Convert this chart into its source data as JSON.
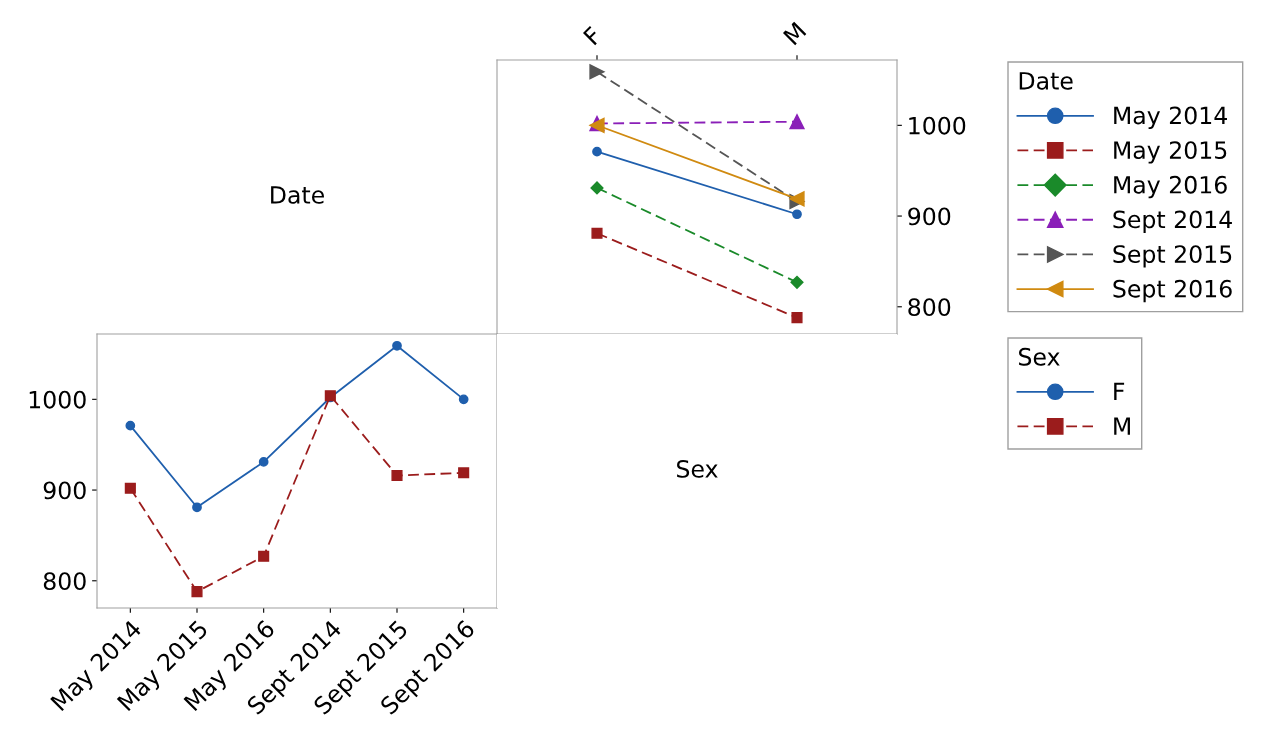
{
  "chart_data": [
    {
      "type": "other",
      "title": "Date"
    },
    {
      "type": "line",
      "categories": [
        "F",
        "M"
      ],
      "ylim": [
        770,
        1072
      ],
      "yticks": [
        800,
        900,
        1000
      ],
      "legend_title": "Date",
      "legend": "right",
      "grid": false,
      "series": [
        {
          "name": "May 2014",
          "color": "#1f5fad",
          "marker": "circle",
          "line_style": "solid",
          "values": [
            971,
            902
          ]
        },
        {
          "name": "May 2015",
          "color": "#9b1c1c",
          "marker": "square",
          "line_style": "dashed",
          "values": [
            881,
            788
          ]
        },
        {
          "name": "May 2016",
          "color": "#1a8a2a",
          "marker": "diamond",
          "line_style": "dashed",
          "values": [
            931,
            827
          ]
        },
        {
          "name": "Sept 2014",
          "color": "#8a1fb8",
          "marker": "triangle",
          "line_style": "dashed",
          "values": [
            1002,
            1004
          ]
        },
        {
          "name": "Sept 2015",
          "color": "#555555",
          "marker": "triangle-right",
          "line_style": "dashed",
          "values": [
            1059,
            916
          ]
        },
        {
          "name": "Sept 2016",
          "color": "#d08a10",
          "marker": "triangle-left",
          "line_style": "solid",
          "values": [
            1000,
            919
          ]
        }
      ]
    },
    {
      "type": "line",
      "categories": [
        "May 2014",
        "May 2015",
        "May 2016",
        "Sept 2014",
        "Sept 2015",
        "Sept 2016"
      ],
      "ylim": [
        770,
        1072
      ],
      "yticks": [
        800,
        900,
        1000
      ],
      "legend_title": "Sex",
      "legend": "right",
      "grid": false,
      "series": [
        {
          "name": "F",
          "color": "#1f5fad",
          "marker": "circle",
          "line_style": "solid",
          "values": [
            971,
            881,
            931,
            1002,
            1059,
            1000
          ]
        },
        {
          "name": "M",
          "color": "#9b1c1c",
          "marker": "square",
          "line_style": "dashed",
          "values": [
            902,
            788,
            827,
            1004,
            916,
            919
          ]
        }
      ]
    },
    {
      "type": "other",
      "title": "Sex"
    }
  ]
}
